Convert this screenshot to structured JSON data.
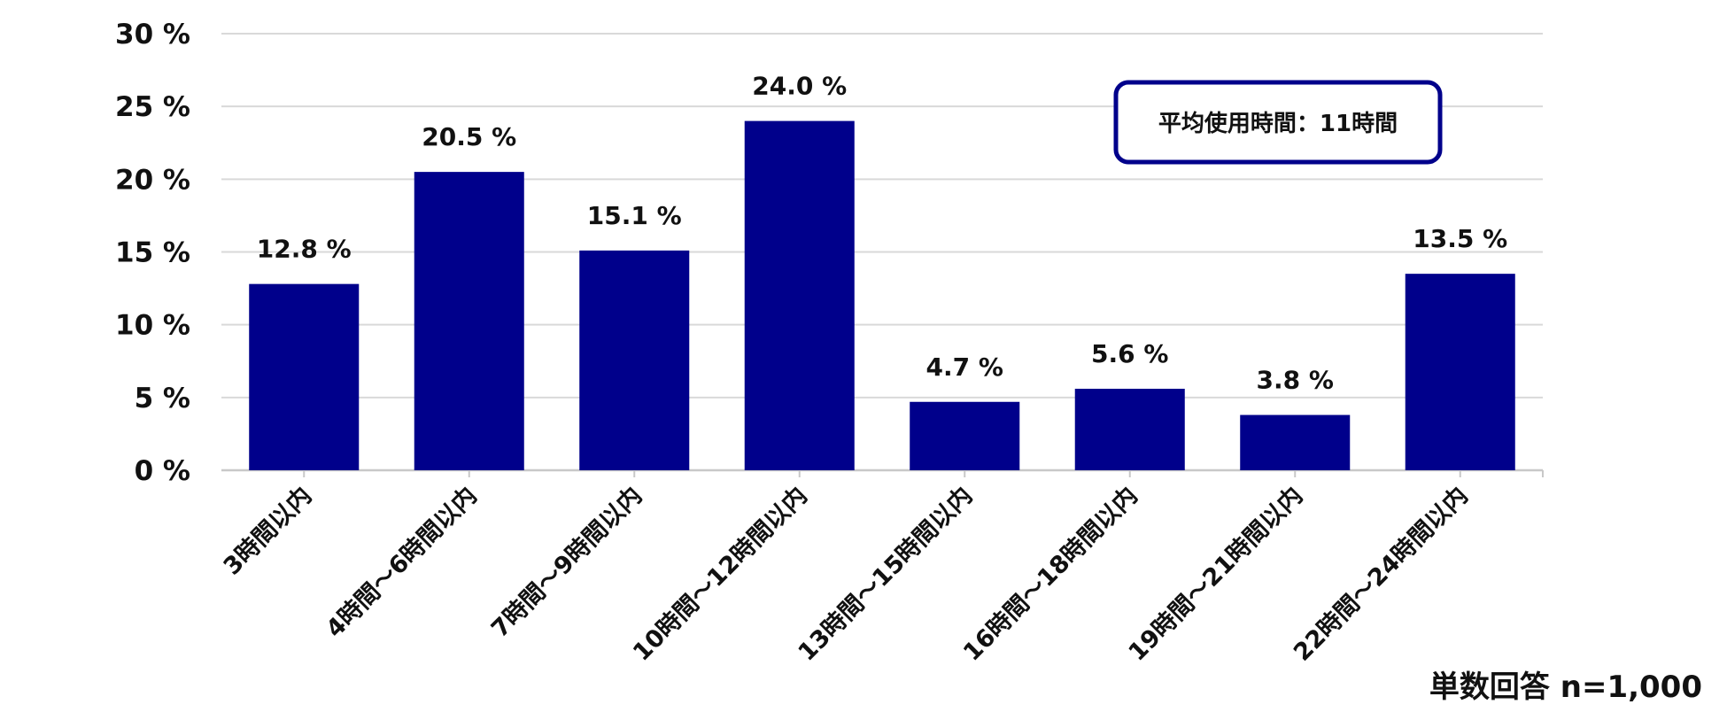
{
  "chart_data": {
    "type": "bar",
    "categories": [
      "3時間以内",
      "4時間～6時間以内",
      "7時間～9時間以内",
      "10時間～12時間以内",
      "13時間～15時間以内",
      "16時間～18時間以内",
      "19時間～21時間以内",
      "22時間～24時間以内"
    ],
    "values": [
      12.8,
      20.5,
      15.1,
      24.0,
      4.7,
      5.6,
      3.8,
      13.5
    ],
    "value_labels": [
      "12.8 %",
      "20.5 %",
      "15.1 %",
      "24.0 %",
      "4.7 %",
      "5.6 %",
      "3.8 %",
      "13.5 %"
    ],
    "ylim": [
      0,
      30
    ],
    "yticks": [
      0,
      5,
      10,
      15,
      20,
      25,
      30
    ],
    "ytick_labels": [
      "0 %",
      "5 %",
      "10 %",
      "15 %",
      "20 %",
      "25 %",
      "30 %"
    ],
    "grid": true,
    "bar_color": "#00008b",
    "grid_color": "#d9d9d9",
    "annotation": "平均使用時間：11時間",
    "footnote": "単数回答 n=1,000"
  }
}
